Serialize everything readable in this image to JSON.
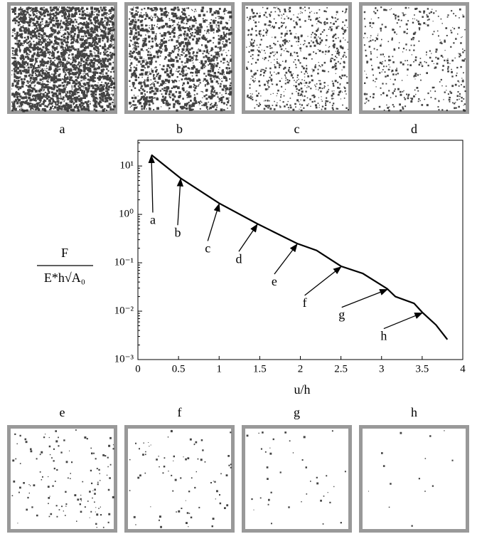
{
  "chart_data": {
    "type": "line",
    "xlabel": "u/h",
    "ylabel": {
      "numerator": "F",
      "denominator": "E*h√A₀"
    },
    "x": [
      0.166,
      0.525,
      1.0,
      1.47,
      1.96,
      2.2,
      2.5,
      2.77,
      3.07,
      3.17,
      3.4,
      3.5,
      3.67,
      3.81
    ],
    "series": [
      {
        "color": "#000000",
        "values": [
          17,
          5.6,
          1.7,
          0.64,
          0.25,
          0.18,
          0.085,
          0.06,
          0.029,
          0.02,
          0.0145,
          0.0095,
          0.0052,
          0.0026
        ]
      }
    ],
    "xlim": [
      0,
      4
    ],
    "xticks": [
      0,
      0.5,
      1,
      1.5,
      2,
      2.5,
      3,
      3.5,
      4
    ],
    "ylim": [
      0.001,
      34
    ],
    "yscale": "log",
    "yticks": [
      {
        "value": 0.001,
        "label": "10⁻³"
      },
      {
        "value": 0.01,
        "label": "10⁻²"
      },
      {
        "value": 0.1,
        "label": "10⁻¹"
      },
      {
        "value": 1,
        "label": "10⁰"
      },
      {
        "value": 10,
        "label": "10¹"
      }
    ],
    "grid": false,
    "annotations": [
      {
        "text": "a",
        "x": 0.166,
        "y": 17
      },
      {
        "text": "b",
        "x": 0.525,
        "y": 5.6
      },
      {
        "text": "c",
        "x": 1.0,
        "y": 1.7
      },
      {
        "text": "d",
        "x": 1.47,
        "y": 0.64
      },
      {
        "text": "e",
        "x": 1.96,
        "y": 0.25
      },
      {
        "text": "f",
        "x": 2.5,
        "y": 0.085
      },
      {
        "text": "g",
        "x": 3.07,
        "y": 0.029
      },
      {
        "text": "h",
        "x": 3.5,
        "y": 0.0095
      }
    ],
    "panels": [
      "a",
      "b",
      "c",
      "d",
      "e",
      "f",
      "g",
      "h"
    ]
  }
}
